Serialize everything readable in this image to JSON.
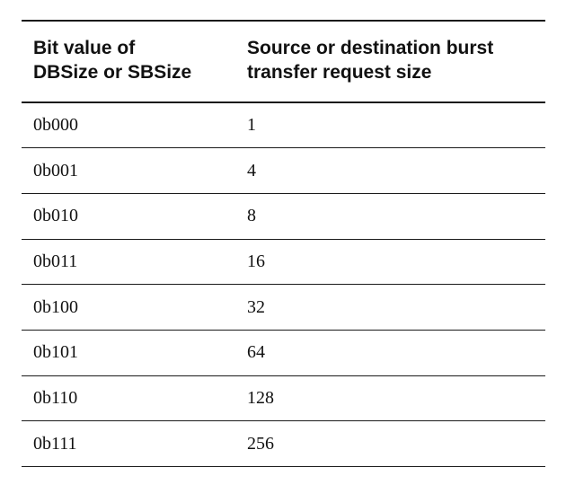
{
  "table": {
    "headers": [
      {
        "lines": [
          "Bit value of",
          "DBSize or SBSize"
        ]
      },
      {
        "lines": [
          "Source or destination burst",
          "transfer request size"
        ]
      }
    ],
    "rows": [
      {
        "bit_value": "0b000",
        "size": "1"
      },
      {
        "bit_value": "0b001",
        "size": "4"
      },
      {
        "bit_value": "0b010",
        "size": "8"
      },
      {
        "bit_value": "0b011",
        "size": "16"
      },
      {
        "bit_value": "0b100",
        "size": "32"
      },
      {
        "bit_value": "0b101",
        "size": "64"
      },
      {
        "bit_value": "0b110",
        "size": "128"
      },
      {
        "bit_value": "0b111",
        "size": "256"
      }
    ]
  }
}
